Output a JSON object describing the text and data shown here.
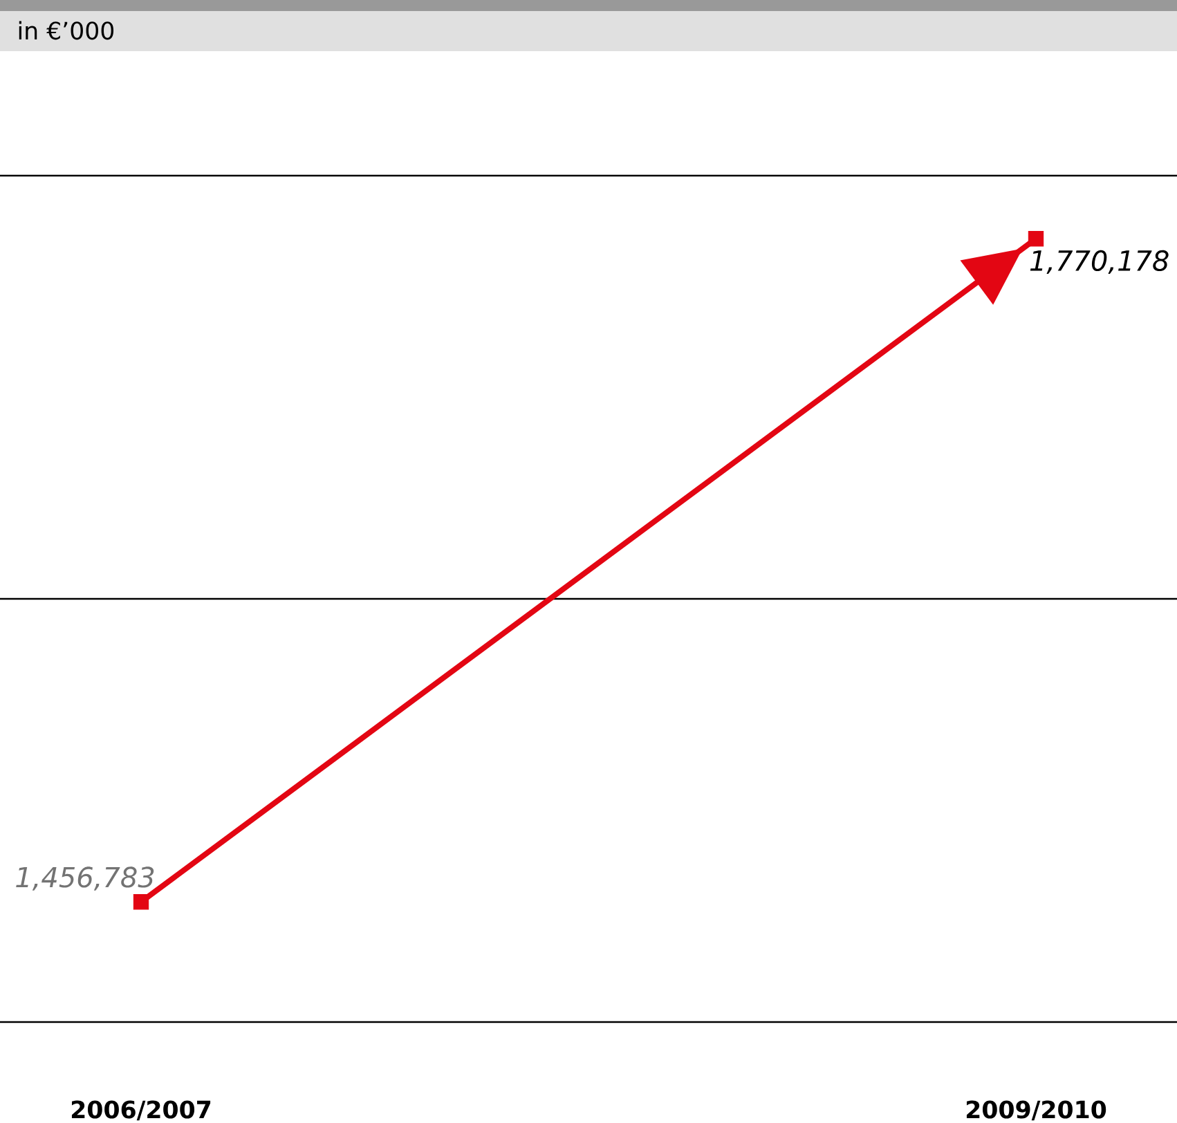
{
  "chart_data": {
    "type": "line",
    "subtitle": "in €’000",
    "categories": [
      "2006/2007",
      "2009/2010"
    ],
    "series": [
      {
        "color": "#e30613",
        "values": [
          1456783,
          1770178
        ],
        "value_labels": [
          "1,456,783",
          "1,770,178"
        ]
      }
    ],
    "ylim": [
      1400000,
      1800000
    ],
    "yticks": [
      1400000,
      1600000,
      1800000
    ],
    "grid": "y",
    "tick_labels": "x",
    "marker": "square"
  }
}
